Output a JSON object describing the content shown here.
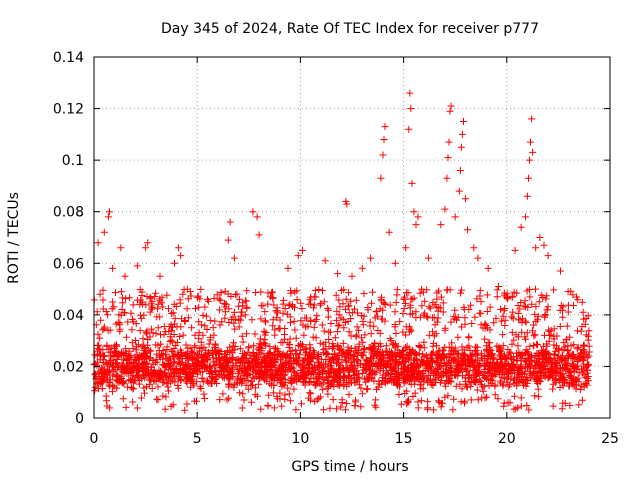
{
  "chart_data": {
    "type": "scatter",
    "title": "Day 345 of 2024, Rate Of TEC Index for receiver p777",
    "xlabel": "GPS time / hours",
    "ylabel": "ROTI / TECUs",
    "xlim": [
      0,
      25
    ],
    "ylim": [
      0,
      0.14
    ],
    "xticks": [
      0,
      5,
      10,
      15,
      20,
      25
    ],
    "xtick_labels": [
      "0",
      "5",
      "10",
      "15",
      "20",
      "25"
    ],
    "yticks": [
      0,
      0.02,
      0.04,
      0.06,
      0.08,
      0.1,
      0.12,
      0.14
    ],
    "ytick_labels": [
      "0",
      "0.02",
      "0.04",
      "0.06",
      "0.08",
      "0.1",
      "0.12",
      "0.14"
    ],
    "grid": true,
    "marker": "plus",
    "color": "#ff0000",
    "data_range_hours": [
      0,
      24
    ],
    "series": [
      {
        "name": "ROTI",
        "points": [
          [
            0.2,
            0.068
          ],
          [
            0.5,
            0.072
          ],
          [
            0.7,
            0.078
          ],
          [
            0.75,
            0.08
          ],
          [
            0.9,
            0.058
          ],
          [
            1.3,
            0.066
          ],
          [
            1.5,
            0.055
          ],
          [
            2.1,
            0.059
          ],
          [
            2.5,
            0.066
          ],
          [
            2.6,
            0.068
          ],
          [
            3.2,
            0.055
          ],
          [
            3.9,
            0.06
          ],
          [
            4.1,
            0.066
          ],
          [
            4.2,
            0.063
          ],
          [
            4.3,
            0.048
          ],
          [
            5.5,
            0.046
          ],
          [
            6.5,
            0.069
          ],
          [
            6.6,
            0.076
          ],
          [
            6.8,
            0.062
          ],
          [
            7.7,
            0.08
          ],
          [
            7.9,
            0.078
          ],
          [
            8.0,
            0.071
          ],
          [
            9.4,
            0.058
          ],
          [
            9.9,
            0.063
          ],
          [
            10.1,
            0.065
          ],
          [
            11.2,
            0.061
          ],
          [
            11.8,
            0.056
          ],
          [
            12.2,
            0.084
          ],
          [
            12.25,
            0.083
          ],
          [
            12.5,
            0.055
          ],
          [
            13.0,
            0.058
          ],
          [
            13.4,
            0.062
          ],
          [
            13.9,
            0.093
          ],
          [
            14.0,
            0.102
          ],
          [
            14.05,
            0.108
          ],
          [
            14.1,
            0.113
          ],
          [
            14.3,
            0.072
          ],
          [
            14.6,
            0.06
          ],
          [
            15.1,
            0.066
          ],
          [
            15.25,
            0.112
          ],
          [
            15.3,
            0.126
          ],
          [
            15.35,
            0.12
          ],
          [
            15.4,
            0.091
          ],
          [
            15.5,
            0.08
          ],
          [
            15.6,
            0.075
          ],
          [
            15.7,
            0.078
          ],
          [
            16.2,
            0.062
          ],
          [
            16.8,
            0.075
          ],
          [
            17.0,
            0.081
          ],
          [
            17.1,
            0.093
          ],
          [
            17.15,
            0.101
          ],
          [
            17.2,
            0.107
          ],
          [
            17.25,
            0.119
          ],
          [
            17.3,
            0.121
          ],
          [
            17.5,
            0.078
          ],
          [
            17.7,
            0.088
          ],
          [
            17.75,
            0.096
          ],
          [
            17.8,
            0.105
          ],
          [
            17.85,
            0.11
          ],
          [
            17.9,
            0.115
          ],
          [
            18.0,
            0.085
          ],
          [
            18.1,
            0.073
          ],
          [
            18.4,
            0.066
          ],
          [
            18.6,
            0.062
          ],
          [
            19.1,
            0.058
          ],
          [
            19.6,
            0.051
          ],
          [
            20.4,
            0.065
          ],
          [
            20.7,
            0.074
          ],
          [
            20.9,
            0.078
          ],
          [
            21.0,
            0.086
          ],
          [
            21.05,
            0.093
          ],
          [
            21.1,
            0.1
          ],
          [
            21.15,
            0.107
          ],
          [
            21.2,
            0.116
          ],
          [
            21.25,
            0.103
          ],
          [
            21.4,
            0.066
          ],
          [
            21.6,
            0.07
          ],
          [
            21.8,
            0.067
          ],
          [
            22.0,
            0.063
          ],
          [
            22.6,
            0.057
          ],
          [
            23.7,
            0.041
          ]
        ],
        "dense_band": {
          "description": "continuous dense scatter of points along the full day",
          "typical_range": [
            0.01,
            0.03
          ],
          "min": 0.003,
          "max_common": 0.05
        }
      }
    ]
  }
}
